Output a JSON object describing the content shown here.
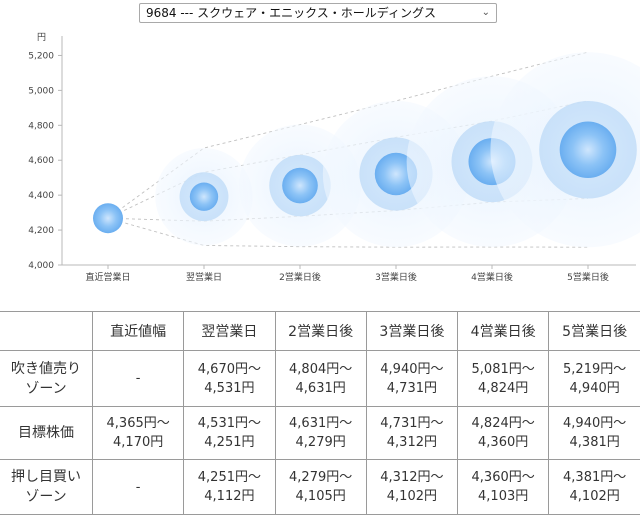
{
  "selector": {
    "value": "9684 --- スクウェア・エニックス・ホールディングス"
  },
  "chart_data": {
    "type": "bubble",
    "y_unit": "円",
    "ylim": [
      4000,
      5300
    ],
    "y_ticks": [
      "4,000",
      "4,200",
      "4,400",
      "4,600",
      "4,800",
      "5,000",
      "5,200"
    ],
    "y_tick_values": [
      4000,
      4200,
      4400,
      4600,
      4800,
      5000,
      5200
    ],
    "categories": [
      "直近営業日",
      "翌営業日",
      "2営業日後",
      "3営業日後",
      "4営業日後",
      "5営業日後"
    ],
    "target_values": [
      4268,
      4391,
      4455,
      4521,
      4592,
      4660
    ],
    "upper_bound": [
      4268,
      4670,
      4804,
      4940,
      5081,
      5219
    ],
    "lower_bound": [
      4268,
      4112,
      4105,
      4102,
      4103,
      4102
    ],
    "inner_upper": [
      4268,
      4531,
      4631,
      4731,
      4824,
      4940
    ],
    "inner_lower": [
      4268,
      4251,
      4279,
      4312,
      4360,
      4381
    ],
    "bubble_color": "#6fb2f2",
    "grid": false
  },
  "table": {
    "headers": [
      "",
      "直近値幅",
      "翌営業日",
      "2営業日後",
      "3営業日後",
      "4営業日後",
      "5営業日後"
    ],
    "rows": [
      {
        "label_lines": [
          "吹き値売り",
          "ゾーン"
        ],
        "cells": [
          [
            "-"
          ],
          [
            "4,670円〜",
            "4,531円"
          ],
          [
            "4,804円〜",
            "4,631円"
          ],
          [
            "4,940円〜",
            "4,731円"
          ],
          [
            "5,081円〜",
            "4,824円"
          ],
          [
            "5,219円〜",
            "4,940円"
          ]
        ]
      },
      {
        "label_lines": [
          "目標株価"
        ],
        "cells": [
          [
            "4,365円〜",
            "4,170円"
          ],
          [
            "4,531円〜",
            "4,251円"
          ],
          [
            "4,631円〜",
            "4,279円"
          ],
          [
            "4,731円〜",
            "4,312円"
          ],
          [
            "4,824円〜",
            "4,360円"
          ],
          [
            "4,940円〜",
            "4,381円"
          ]
        ]
      },
      {
        "label_lines": [
          "押し目買い",
          "ゾーン"
        ],
        "cells": [
          [
            "-"
          ],
          [
            "4,251円〜",
            "4,112円"
          ],
          [
            "4,279円〜",
            "4,105円"
          ],
          [
            "4,312円〜",
            "4,102円"
          ],
          [
            "4,360円〜",
            "4,103円"
          ],
          [
            "4,381円〜",
            "4,102円"
          ]
        ]
      }
    ]
  }
}
